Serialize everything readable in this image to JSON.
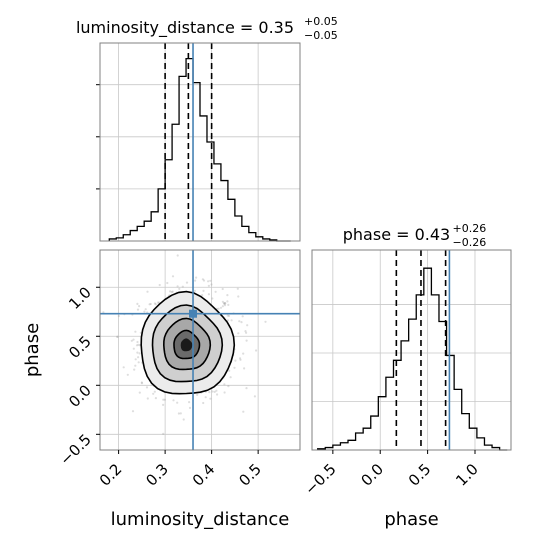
{
  "chart_data": {
    "type": "corner",
    "parameters": [
      "luminosity_distance",
      "phase"
    ],
    "colors": {
      "histogram": "#000000",
      "truth": "#4682b4",
      "grid": "#c8c8c8",
      "frame": "#808080",
      "scatter": "#a0a0a0"
    },
    "truth": {
      "luminosity_distance": 0.36,
      "phase": 0.73
    },
    "panels": [
      {
        "id": "luminosity_distance_hist",
        "type": "histogram",
        "title_left": "luminosity_distance = 0.35",
        "sup": "+0.05",
        "sub": "−0.05",
        "xlim": [
          0.16,
          0.59
        ],
        "bin_edges": [
          0.18,
          0.195,
          0.21,
          0.225,
          0.24,
          0.255,
          0.27,
          0.285,
          0.3,
          0.315,
          0.33,
          0.345,
          0.36,
          0.375,
          0.39,
          0.405,
          0.42,
          0.435,
          0.45,
          0.465,
          0.48,
          0.495,
          0.51,
          0.525,
          0.54,
          0.555,
          0.57
        ],
        "counts": [
          2,
          3,
          6,
          10,
          14,
          19,
          28,
          50,
          78,
          112,
          158,
          175,
          152,
          120,
          95,
          74,
          58,
          40,
          24,
          14,
          8,
          4,
          2,
          1,
          0,
          0
        ],
        "quantiles": [
          0.3,
          0.35,
          0.4
        ],
        "ylim": [
          0,
          190
        ],
        "yticks": [
          50,
          100,
          150
        ]
      },
      {
        "id": "phase_hist",
        "type": "histogram",
        "title_left": "phase = 0.43",
        "sup": "+0.26",
        "sub": "−0.26",
        "xlim": [
          -0.72,
          1.38
        ],
        "bin_edges": [
          -0.66,
          -0.58,
          -0.5,
          -0.42,
          -0.34,
          -0.26,
          -0.18,
          -0.1,
          -0.02,
          0.06,
          0.14,
          0.22,
          0.3,
          0.38,
          0.46,
          0.54,
          0.62,
          0.7,
          0.78,
          0.86,
          0.94,
          1.02,
          1.1,
          1.18,
          1.26,
          1.34
        ],
        "counts": [
          1,
          2,
          4,
          6,
          8,
          14,
          18,
          28,
          44,
          60,
          74,
          90,
          108,
          128,
          150,
          128,
          106,
          78,
          50,
          30,
          18,
          10,
          4,
          2,
          0
        ],
        "quantiles": [
          0.17,
          0.43,
          0.69
        ],
        "ylim": [
          0,
          165
        ],
        "yticks": [
          40,
          80,
          120
        ]
      },
      {
        "id": "joint_2d",
        "type": "contour",
        "xlim": [
          0.16,
          0.59
        ],
        "ylim": [
          -0.66,
          1.38
        ],
        "center": [
          0.35,
          0.43
        ],
        "sigma": [
          0.05,
          0.26
        ]
      }
    ],
    "x_ticks_ld": [
      0.2,
      0.3,
      0.4,
      0.5
    ],
    "x_tick_labels_ld": [
      "0.2",
      "0.3",
      "0.4",
      "0.5"
    ],
    "y_ticks_phase": [
      -0.5,
      0.0,
      0.5,
      1.0
    ],
    "y_tick_labels_phase": [
      "−0.5",
      "0.0",
      "0.5",
      "1.0"
    ],
    "x_ticks_phase": [
      -0.5,
      0.0,
      0.5,
      1.0
    ],
    "x_tick_labels_phase": [
      "−0.5",
      "0.0",
      "0.5",
      "1.0"
    ],
    "xlabel_left": "luminosity_distance",
    "xlabel_right": "phase",
    "ylabel_left": "phase"
  }
}
